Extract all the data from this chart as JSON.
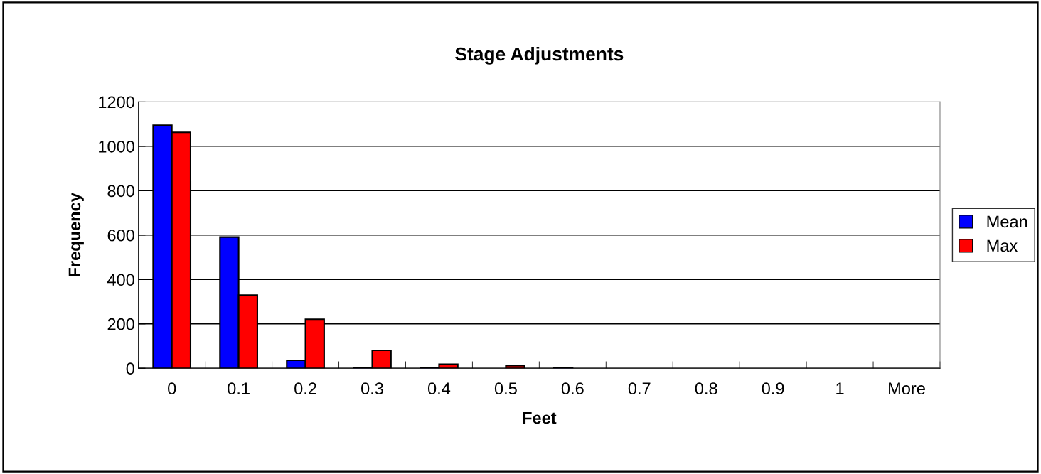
{
  "chart_data": {
    "type": "bar",
    "title": "Stage Adjustments",
    "xlabel": "Feet",
    "ylabel": "Frequency",
    "categories": [
      "0",
      "0.1",
      "0.2",
      "0.3",
      "0.4",
      "0.5",
      "0.6",
      "0.7",
      "0.8",
      "0.9",
      "1",
      "More"
    ],
    "series": [
      {
        "name": "Mean",
        "color": "#0000ff",
        "values": [
          1095,
          591,
          36,
          3,
          3,
          0,
          3,
          0,
          0,
          0,
          0,
          0
        ]
      },
      {
        "name": "Max",
        "color": "#ff0000",
        "values": [
          1063,
          330,
          221,
          81,
          18,
          12,
          0,
          0,
          0,
          0,
          0,
          0
        ]
      }
    ],
    "ylim": [
      0,
      1200
    ],
    "yticks": [
      0,
      200,
      400,
      600,
      800,
      1000,
      1200
    ],
    "grid": "y",
    "legend": "right"
  }
}
